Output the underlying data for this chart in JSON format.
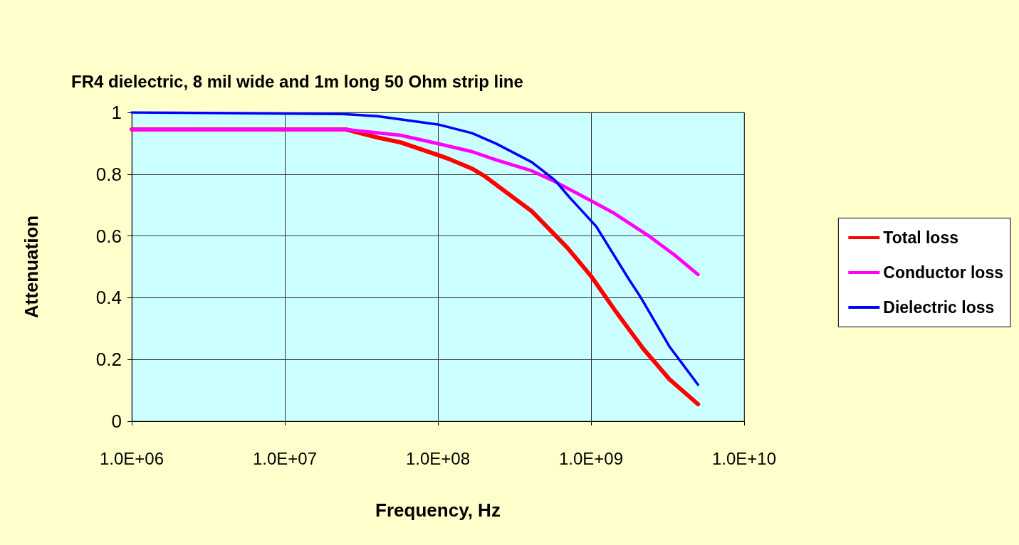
{
  "chart_data": {
    "type": "line",
    "title": "FR4 dielectric, 8 mil wide and 1m long 50 Ohm strip line",
    "xlabel": "Frequency, Hz",
    "ylabel": "Attenuation",
    "log": "x",
    "xlim": [
      1000000,
      10000000000
    ],
    "xticks": [
      {
        "value": 1000000,
        "label": "1.0E+06"
      },
      {
        "value": 10000000,
        "label": "1.0E+07"
      },
      {
        "value": 100000000,
        "label": "1.0E+08"
      },
      {
        "value": 1000000000,
        "label": "1.0E+09"
      },
      {
        "value": 10000000000,
        "label": "1.0E+10"
      }
    ],
    "ylim": [
      0,
      1
    ],
    "yticks": [
      0,
      0.2,
      0.4,
      0.6,
      0.8,
      1
    ],
    "grid": true,
    "legend": "right",
    "marker": "none",
    "line_style": "solid",
    "series": [
      {
        "name": "Total loss",
        "color": "#ff0000",
        "x": [
          1000000,
          25000000,
          40000000,
          57000000,
          100000000,
          117000000,
          167000000,
          200000000,
          410000000,
          700000000,
          1000000000,
          1420000000,
          1840000000,
          2190000000,
          3250000000,
          5000000000
        ],
        "values": [
          0.945,
          0.945,
          0.919,
          0.903,
          0.862,
          0.85,
          0.818,
          0.795,
          0.68,
          0.562,
          0.47,
          0.362,
          0.286,
          0.235,
          0.136,
          0.055
        ]
      },
      {
        "name": "Conductor loss",
        "color": "#ff00ff",
        "x": [
          1000000,
          25000000,
          28000000,
          57000000,
          100000000,
          167000000,
          240000000,
          410000000,
          580000000,
          1000000000,
          1420000000,
          2400000000,
          3500000000,
          5000000000
        ],
        "values": [
          0.945,
          0.945,
          0.942,
          0.926,
          0.899,
          0.873,
          0.846,
          0.811,
          0.776,
          0.714,
          0.673,
          0.599,
          0.539,
          0.475
        ]
      },
      {
        "name": "Dielectric loss",
        "color": "#0000ff",
        "x": [
          1000000,
          23600000,
          40000000,
          100000000,
          167000000,
          240000000,
          410000000,
          580000000,
          720000000,
          1080000000,
          1770000000,
          2100000000,
          3250000000,
          5000000000
        ],
        "values": [
          1,
          0.995,
          0.988,
          0.961,
          0.933,
          0.899,
          0.839,
          0.781,
          0.726,
          0.631,
          0.459,
          0.403,
          0.242,
          0.118
        ]
      }
    ]
  }
}
